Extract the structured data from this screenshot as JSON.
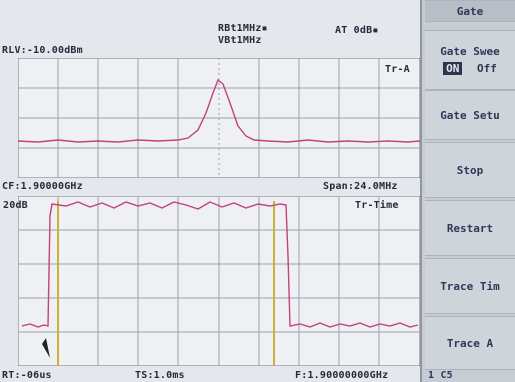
{
  "upper_trace": {
    "rlv": "RLV:-10.00dBm",
    "rbw": "RBt1MHz▪",
    "vbw": "VBt1MHz",
    "atten": "AT  0dB▪",
    "trace_label": "Tr-A",
    "cf": "CF:1.90000GHz",
    "span": "Span:24.0MHz"
  },
  "lower_trace": {
    "ref": "20dB",
    "trace_label": "Tr-Time",
    "bottom_left": "RT:-06us",
    "bottom_mid": "TS:1.0ms",
    "bottom_right": "F:1.90000000GHz"
  },
  "softkeys": {
    "header": "Gate",
    "gate_sweep": "Gate Swee",
    "gate_sweep_on": "ON",
    "gate_sweep_off": "Off",
    "gate_setup": "Gate Setu",
    "stop": "Stop",
    "restart": "Restart",
    "trace_time": "Trace Tim",
    "trace_a": "Trace A",
    "page": "1 C5"
  },
  "colors": {
    "trace": "#c2417e",
    "gate_marker": "#c9b13a",
    "grid": "#9aa0ab"
  }
}
